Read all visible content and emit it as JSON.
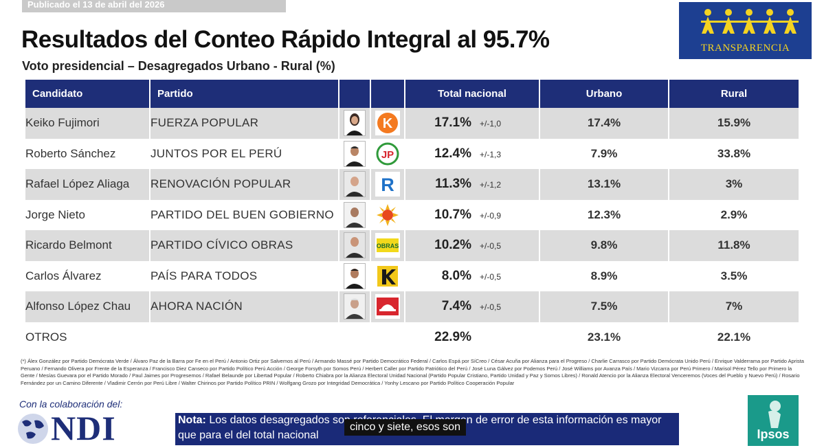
{
  "published": "Publicado el 13 de abril del 2026",
  "title": "Resultados del Conteo Rápido Integral al 95.7%",
  "subtitle": "Voto presidencial – Desagregados Urbano - Rural (%)",
  "logo": {
    "text": "TRANSPARENCIA",
    "bg": "#1d3f91",
    "fg": "#f4d322"
  },
  "colors": {
    "header_bg": "#1e2e78",
    "row_shade": "#dcdcdc",
    "note_bg": "#1a2a78"
  },
  "table": {
    "headers": {
      "candidato": "Candidato",
      "partido": "Partido",
      "total": "Total nacional",
      "urbano": "Urbano",
      "rural": "Rural"
    },
    "rows": [
      {
        "candidato": "Keiko Fujimori",
        "partido": "FUERZA POPULAR",
        "total": "17.1%",
        "error": "+/-1,0",
        "urbano": "17.4%",
        "rural": "15.9%",
        "party_icon": "fuerza-popular-k-logo"
      },
      {
        "candidato": "Roberto Sánchez",
        "partido": "JUNTOS POR EL PERÚ",
        "total": "12.4%",
        "error": "+/-1,3",
        "urbano": "7.9%",
        "rural": "33.8%",
        "party_icon": "juntos-por-el-peru-jp-logo"
      },
      {
        "candidato": "Rafael López Aliaga",
        "partido": "RENOVACIÓN POPULAR",
        "total": "11.3%",
        "error": "+/-1,2",
        "urbano": "13.1%",
        "rural": "3%",
        "party_icon": "renovacion-popular-r-logo"
      },
      {
        "candidato": "Jorge Nieto",
        "partido": "PARTIDO DEL BUEN GOBIERNO",
        "total": "10.7%",
        "error": "+/-0,9",
        "urbano": "12.3%",
        "rural": "2.9%",
        "party_icon": "sun-logo"
      },
      {
        "candidato": "Ricardo Belmont",
        "partido": "PARTIDO CÍVICO OBRAS",
        "total": "10.2%",
        "error": "+/-0,5",
        "urbano": "9.8%",
        "rural": "11.8%",
        "party_icon": "obras-logo"
      },
      {
        "candidato": "Carlos Álvarez",
        "partido": "PAÍS PARA TODOS",
        "total": "8.0%",
        "error": "+/-0,5",
        "urbano": "8.9%",
        "rural": "3.5%",
        "party_icon": "pais-para-todos-logo"
      },
      {
        "candidato": "Alfonso López Chau",
        "partido": "AHORA NACIÓN",
        "total": "7.4%",
        "error": "+/-0,5",
        "urbano": "7.5%",
        "rural": "7%",
        "party_icon": "ahora-nacion-logo"
      },
      {
        "candidato": "OTROS",
        "partido": "",
        "total": "22.9%",
        "error": "",
        "urbano": "23.1%",
        "rural": "22.1%",
        "party_icon": ""
      }
    ]
  },
  "chart_data": {
    "type": "table",
    "title": "Resultados del Conteo Rápido Integral al 95.7%",
    "subtitle": "Voto presidencial – Desagregados Urbano - Rural (%)",
    "columns": [
      "Candidato",
      "Partido",
      "Total nacional",
      "Urbano",
      "Rural"
    ],
    "categories": [
      "Keiko Fujimori",
      "Roberto Sánchez",
      "Rafael López Aliaga",
      "Jorge Nieto",
      "Ricardo Belmont",
      "Carlos Álvarez",
      "Alfonso López Chau",
      "OTROS"
    ],
    "series": [
      {
        "name": "Total nacional",
        "values": [
          17.1,
          12.4,
          11.3,
          10.7,
          10.2,
          8.0,
          7.4,
          22.9
        ]
      },
      {
        "name": "Urbano",
        "values": [
          17.4,
          7.9,
          13.1,
          12.3,
          9.8,
          8.9,
          7.5,
          23.1
        ]
      },
      {
        "name": "Rural",
        "values": [
          15.9,
          33.8,
          3,
          2.9,
          11.8,
          3.5,
          7,
          22.1
        ]
      }
    ],
    "margin_of_error": [
      "+/-1,0",
      "+/-1,3",
      "+/-1,2",
      "+/-0,9",
      "+/-0,5",
      "+/-0,5",
      "+/-0,5",
      ""
    ]
  },
  "footnote": "(*) Álex González por Partido Demócrata Verde / Álvaro Paz de la Barra por Fe en el Perú / Antonio Ortiz por Salvemos al Perú / Armando Massé por Partido Democrático Federal / Carlos Espá por SíCreo / César Acuña por Alianza para el Progreso / Charlie Carrasco por Partido Demócrata Unido Perú / Enrique Valderrama por Partido Aprista Peruano / Fernando Olivera por Frente de la Esperanza / Francisco Diez Canseco por Partido Político Perú Acción / George Forsyth por Somos Perú / Herbert Caller por Partido Patriótico del Perú / José Luna Gálvez por Podemos Perú / José Williams por Avanza País / Mario Vizcarra por Perú Primero / Marisol Pérez Tello por Primero la Gente / Mesías Guevara por el Partido Morado / Paul Jaimes por Progresemos / Rafael Belaunde por Libertad Popular / Roberto Chiabra por la Alianza Electoral Unidad Nacional (Partido Popular Cristiano, Partido Unidad y Paz y Somos Libres) / Ronald Atencio por la Alianza Electoral Venceremos (Voces del Pueblo y Nuevo Perú) / Rosario Fernández por un Camino Diferente / Vladimir Cerrón por Perú Libre / Walter Chirinos por Partido Político PRIN / Wolfgang Grozo por Integridad Democrática / Yonhy Lescano por Partido Político Cooperación Popular",
  "collab": "Con la colaboración del:",
  "ndi": "NDI",
  "note": {
    "label": "Nota:",
    "text": "Los datos desagregados son referenciales. El margen de error de esta información es mayor que para el del total nacional"
  },
  "caption": "cinco y siete, esos son",
  "ipsos": "Ipsos"
}
